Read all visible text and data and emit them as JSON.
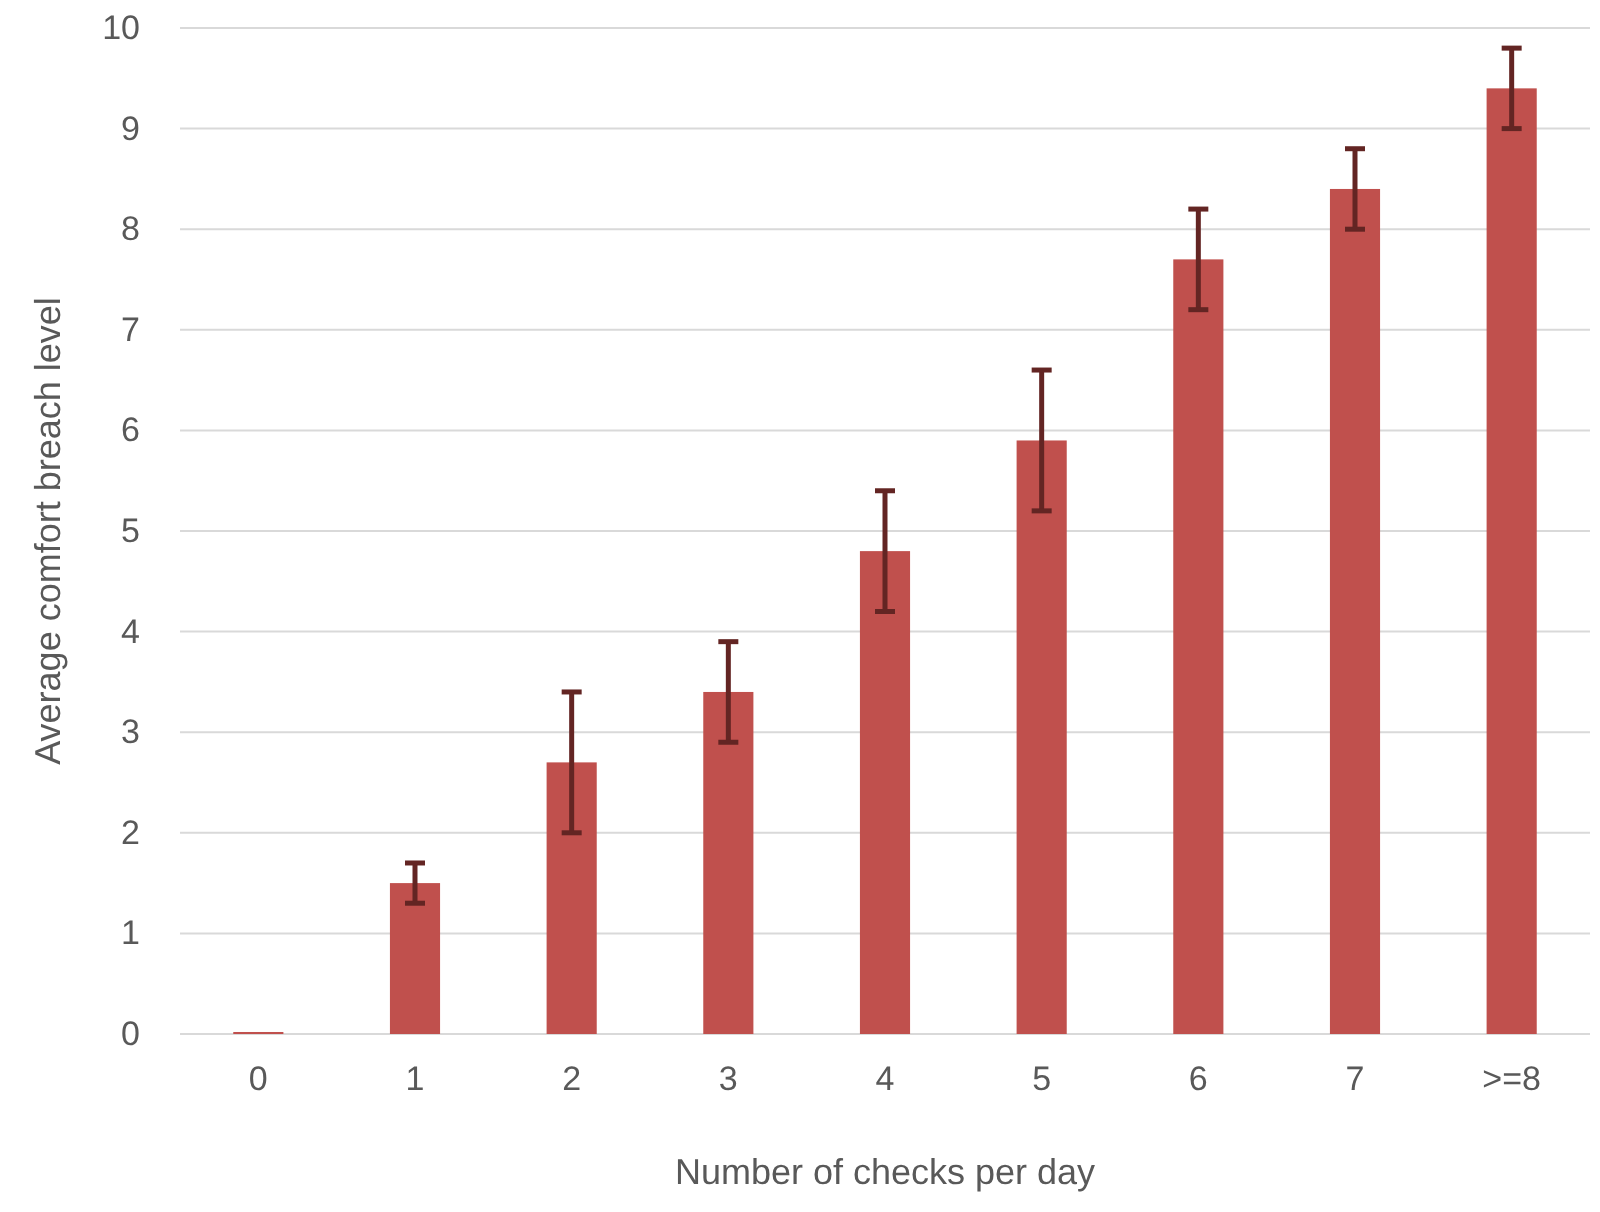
{
  "chart_data": {
    "type": "bar",
    "xlabel": "Number of checks per day",
    "ylabel": "Average comfort breach level",
    "categories": [
      "0",
      "1",
      "2",
      "3",
      "4",
      "5",
      "6",
      "7",
      ">=8"
    ],
    "values": [
      0.02,
      1.5,
      2.7,
      3.4,
      4.8,
      5.9,
      7.7,
      8.4,
      9.4
    ],
    "errors": [
      null,
      0.2,
      0.7,
      0.5,
      0.6,
      0.7,
      0.5,
      0.4,
      0.4
    ],
    "color": "#c0504d",
    "ylim": [
      0,
      10
    ],
    "yticks": [
      0,
      1,
      2,
      3,
      4,
      5,
      6,
      7,
      8,
      9,
      10
    ],
    "grid": "y"
  }
}
